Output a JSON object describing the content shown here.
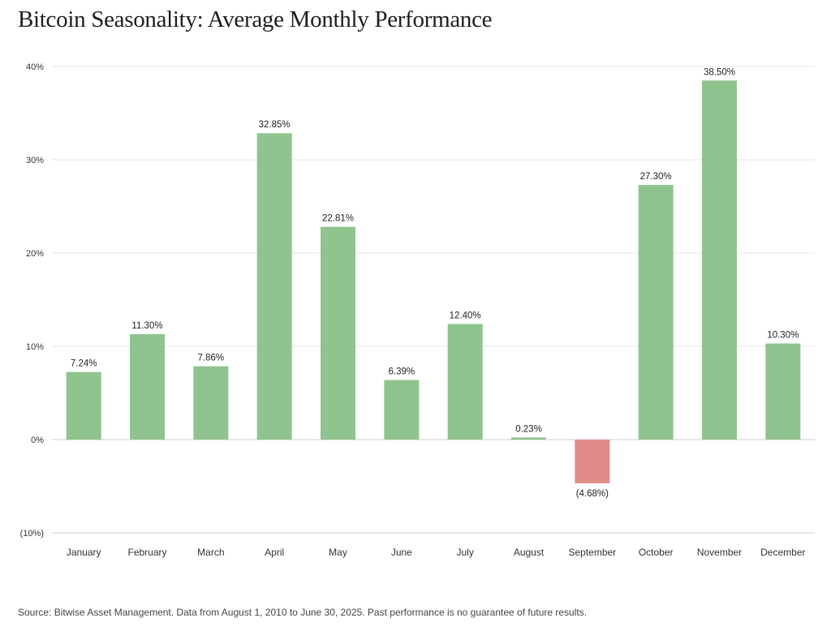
{
  "title": "Bitcoin Seasonality: Average Monthly Performance",
  "source": "Source: Bitwise Asset Management. Data from August 1, 2010 to June 30, 2025. Past performance is no guarantee of future results.",
  "colors": {
    "positive": "#8fc48f",
    "negative": "#e08a88",
    "grid": "#e6e6e6",
    "axis": "#cfcfcf"
  },
  "chart_data": {
    "type": "bar",
    "title": "Bitcoin Seasonality: Average Monthly Performance",
    "xlabel": "",
    "ylabel": "",
    "ylim": [
      -10,
      40
    ],
    "yticks": [
      40,
      30,
      20,
      10,
      0,
      -10
    ],
    "ytick_labels": [
      "40%",
      "30%",
      "20%",
      "10%",
      "0%",
      "(10%)"
    ],
    "categories": [
      "January",
      "February",
      "March",
      "April",
      "May",
      "June",
      "July",
      "August",
      "September",
      "October",
      "November",
      "December"
    ],
    "values": [
      7.24,
      11.3,
      7.86,
      32.85,
      22.81,
      6.39,
      12.4,
      0.23,
      -4.68,
      27.3,
      38.5,
      10.3
    ],
    "data_labels": [
      "7.24%",
      "11.30%",
      "7.86%",
      "32.85%",
      "22.81%",
      "6.39%",
      "12.40%",
      "0.23%",
      "(4.68%)",
      "27.30%",
      "38.50%",
      "10.30%"
    ],
    "grid": true,
    "legend": "none"
  }
}
